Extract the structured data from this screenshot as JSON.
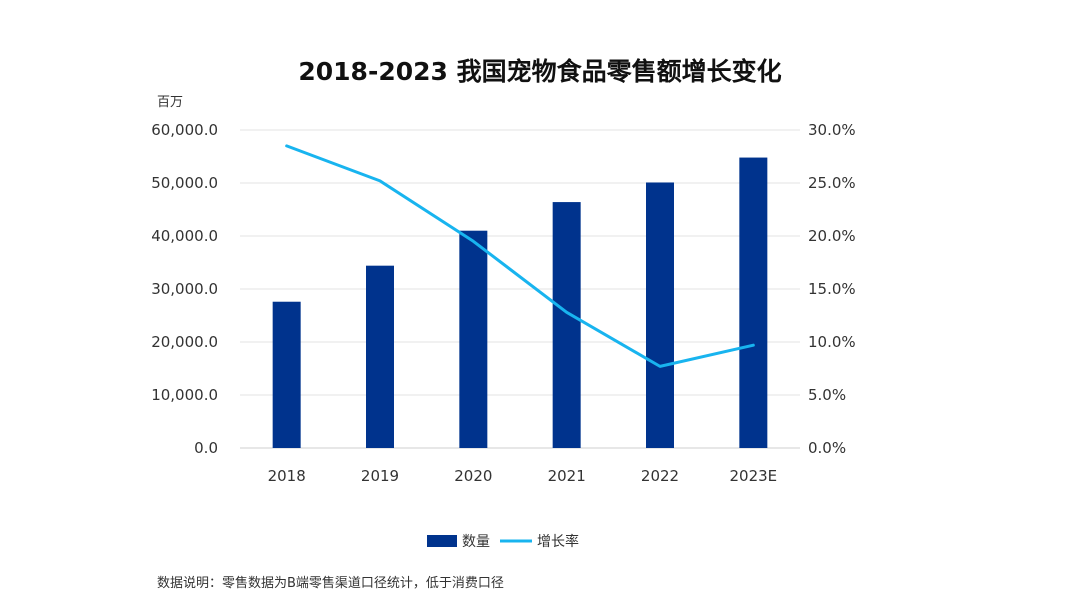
{
  "chart_data": {
    "type": "bar+line",
    "title": "2018-2023 我国宠物食品零售额增长变化",
    "y_left_unit": "百万",
    "categories": [
      "2018",
      "2019",
      "2020",
      "2021",
      "2022",
      "2023E"
    ],
    "series": [
      {
        "name": "数量",
        "type": "bar",
        "axis": "left",
        "values": [
          27600,
          34400,
          41000,
          46400,
          50100,
          54800
        ]
      },
      {
        "name": "增长率",
        "type": "line",
        "axis": "right",
        "values": [
          28.5,
          25.2,
          19.5,
          12.8,
          7.7,
          9.7
        ]
      }
    ],
    "y_left": {
      "min": 0,
      "max": 60000,
      "step": 10000,
      "tick_labels": [
        "0.0",
        "10,000.0",
        "20,000.0",
        "30,000.0",
        "40,000.0",
        "50,000.0",
        "60,000.0"
      ]
    },
    "y_right": {
      "min": 0,
      "max": 30,
      "step": 5,
      "tick_labels": [
        "0.0%",
        "5.0%",
        "10.0%",
        "15.0%",
        "20.0%",
        "25.0%",
        "30.0%"
      ]
    },
    "grid": true,
    "legend": "bottom-center",
    "colors": {
      "bar": "#00338d",
      "line": "#18b4ef"
    },
    "note": "数据说明：零售数据为B端零售渠道口径统计，低于消费口径"
  }
}
